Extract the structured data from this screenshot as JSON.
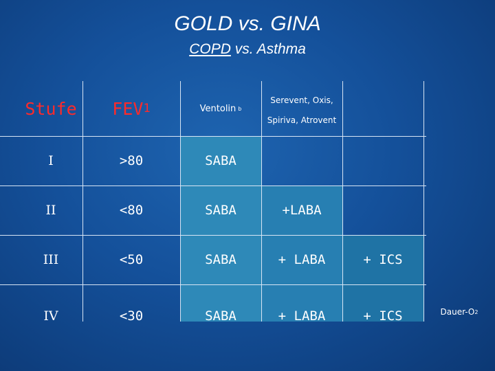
{
  "slide": {
    "title": "GOLD  vs.  GINA",
    "subtitle_a": "COPD",
    "subtitle_b": " vs. Asthma"
  },
  "table": {
    "headers": {
      "stufe": "Stufe",
      "fev": "FEV",
      "fev_sub": "1",
      "ventolin": "Ventolin",
      "ventolin_sub": "b",
      "serevent_line1": "Serevent, Oxis,",
      "serevent_line2": "Spiriva, Atrovent",
      "col5": "",
      "col6": ""
    },
    "rows": [
      {
        "stufe": "I",
        "fev": ">80",
        "c3": "SABA",
        "c4": "",
        "c5": "",
        "c6": ""
      },
      {
        "stufe": "II",
        "fev": "<80",
        "c3": "SABA",
        "c4": "+LABA",
        "c5": "",
        "c6": ""
      },
      {
        "stufe": "III",
        "fev": "<50",
        "c3": "SABA",
        "c4": "+ LABA",
        "c5": "+ ICS",
        "c6": ""
      },
      {
        "stufe": "IV",
        "fev": "<30",
        "c3": "SABA",
        "c4": "+ LABA",
        "c5": "+ ICS",
        "c6": "Dauer-O",
        "c6_sub": "2"
      }
    ]
  },
  "colors": {
    "header_text": "#ff2a2a",
    "saba_fill": "#2e89b8",
    "laba_fill": "#277fb2",
    "ics_fill": "#1f73a5"
  }
}
